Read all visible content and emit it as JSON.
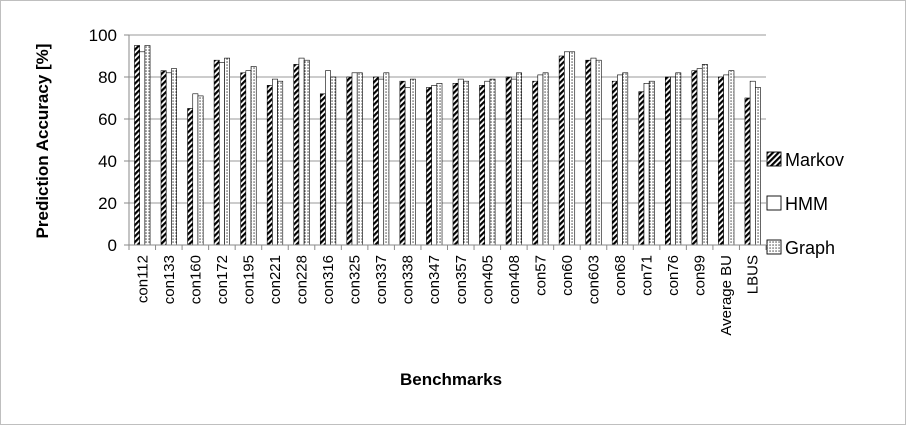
{
  "chart_data": {
    "type": "bar",
    "xlabel": "Benchmarks",
    "ylabel": "Prediction Accuracy [%]",
    "ylim": [
      0,
      100
    ],
    "yticks": [
      0,
      20,
      40,
      60,
      80,
      100
    ],
    "grid": true,
    "legend_position": "right",
    "categories": [
      "con112",
      "con133",
      "con160",
      "con172",
      "con195",
      "con221",
      "con228",
      "con316",
      "con325",
      "con337",
      "con338",
      "con347",
      "con357",
      "con405",
      "con408",
      "con57",
      "con60",
      "con603",
      "con68",
      "con71",
      "con76",
      "con99",
      "Average BU",
      "LBUS"
    ],
    "series": [
      {
        "name": "Markov",
        "pattern": "diagonal-hatch",
        "values": [
          95,
          83,
          65,
          88,
          82,
          76,
          86,
          72,
          80,
          80,
          78,
          75,
          77,
          76,
          80,
          78,
          90,
          88,
          78,
          73,
          80,
          83,
          80,
          70
        ]
      },
      {
        "name": "HMM",
        "pattern": "white",
        "values": [
          92,
          82,
          72,
          87,
          83,
          79,
          89,
          83,
          82,
          79,
          75,
          76,
          79,
          78,
          79,
          81,
          92,
          89,
          81,
          77,
          80,
          84,
          81,
          78
        ]
      },
      {
        "name": "Graph",
        "pattern": "dotted",
        "values": [
          95,
          84,
          71,
          89,
          85,
          78,
          88,
          80,
          82,
          82,
          79,
          77,
          78,
          79,
          82,
          82,
          92,
          88,
          82,
          78,
          82,
          86,
          83,
          75
        ]
      }
    ]
  }
}
